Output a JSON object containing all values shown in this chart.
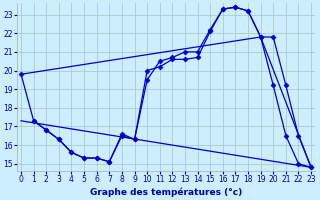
{
  "xlabel": "Graphe des températures (°c)",
  "background_color": "#cceeff",
  "grid_color": "#aacccc",
  "line_color": "#0000cc",
  "x_ticks": [
    0,
    1,
    2,
    3,
    4,
    5,
    6,
    7,
    8,
    9,
    10,
    11,
    12,
    13,
    14,
    15,
    16,
    17,
    18,
    19,
    20,
    21,
    22,
    23
  ],
  "y_ticks": [
    15,
    16,
    17,
    18,
    19,
    20,
    21,
    22,
    23
  ],
  "xlim": [
    -0.3,
    23.3
  ],
  "ylim": [
    14.6,
    23.6
  ],
  "series": [
    {
      "x": [
        0,
        1,
        2,
        3,
        4,
        5,
        6,
        7,
        8,
        9,
        10,
        11,
        12,
        13,
        14,
        15,
        16,
        17,
        18,
        19,
        20,
        21,
        22,
        23
      ],
      "y": [
        19.8,
        17.3,
        16.8,
        16.3,
        15.6,
        15.3,
        15.3,
        15.1,
        16.5,
        16.3,
        20.0,
        20.2,
        20.6,
        20.6,
        20.7,
        22.1,
        23.3,
        23.4,
        23.2,
        21.8,
        19.2,
        16.5,
        15.0,
        14.8
      ],
      "marker": "D",
      "markersize": 2.5,
      "linewidth": 0.9,
      "linestyle": "-"
    },
    {
      "x": [
        1,
        2,
        3,
        4,
        5,
        6,
        7,
        8,
        9,
        10,
        11,
        12,
        13,
        14,
        15,
        16,
        17,
        18,
        19,
        20,
        21,
        22,
        23
      ],
      "y": [
        17.3,
        16.8,
        16.3,
        15.6,
        15.3,
        15.3,
        15.1,
        16.6,
        16.3,
        19.5,
        20.5,
        20.7,
        21.0,
        21.0,
        22.2,
        23.3,
        23.4,
        23.2,
        21.8,
        21.8,
        19.2,
        16.5,
        14.8
      ],
      "marker": "D",
      "markersize": 2.5,
      "linewidth": 0.9,
      "linestyle": "-"
    },
    {
      "x": [
        0,
        19,
        23
      ],
      "y": [
        19.8,
        21.8,
        14.8
      ],
      "marker": null,
      "markersize": 0,
      "linewidth": 0.9,
      "linestyle": "-"
    },
    {
      "x": [
        0,
        23
      ],
      "y": [
        17.3,
        14.8
      ],
      "marker": null,
      "markersize": 0,
      "linewidth": 0.9,
      "linestyle": "-"
    }
  ]
}
